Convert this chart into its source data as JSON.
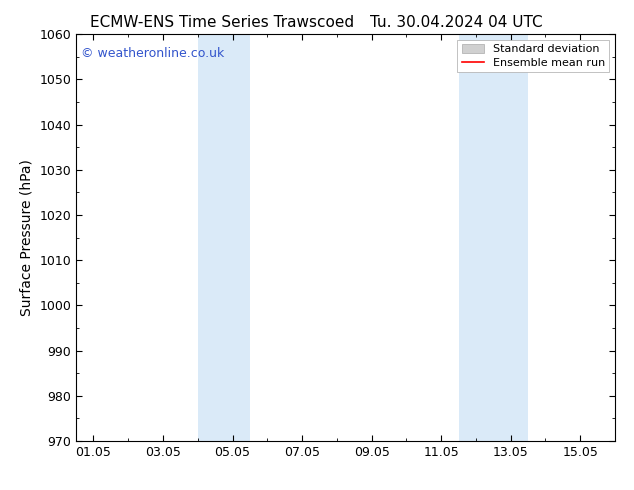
{
  "title_left": "ECMW-ENS Time Series Trawscoed",
  "title_right": "Tu. 30.04.2024 04 UTC",
  "ylabel": "Surface Pressure (hPa)",
  "ylim": [
    970,
    1060
  ],
  "yticks": [
    970,
    980,
    990,
    1000,
    1010,
    1020,
    1030,
    1040,
    1050,
    1060
  ],
  "xtick_labels": [
    "01.05",
    "03.05",
    "05.05",
    "07.05",
    "09.05",
    "11.05",
    "13.05",
    "15.05"
  ],
  "xtick_positions": [
    0,
    2,
    4,
    6,
    8,
    10,
    12,
    14
  ],
  "xlim": [
    -0.5,
    15.0
  ],
  "shaded_bands": [
    {
      "x_start": 3.0,
      "x_end": 4.5
    },
    {
      "x_start": 10.5,
      "x_end": 12.5
    }
  ],
  "shaded_color": "#daeaf8",
  "background_color": "#ffffff",
  "watermark_text": "© weatheronline.co.uk",
  "watermark_color": "#3355cc",
  "legend_std_color": "#d0d0d0",
  "legend_mean_color": "#ff0000",
  "title_fontsize": 11,
  "axis_label_fontsize": 10,
  "tick_fontsize": 9
}
